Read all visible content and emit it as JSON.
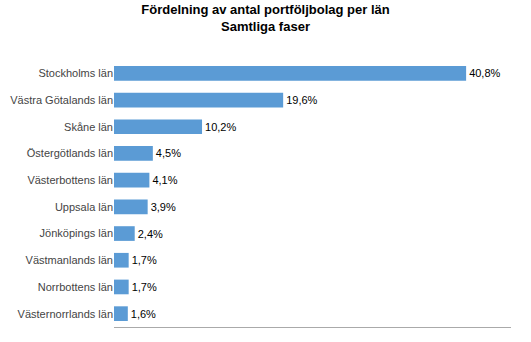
{
  "chart_data": {
    "type": "bar",
    "orientation": "horizontal",
    "title": "Fördelning av antal portföljbolag per län",
    "subtitle": "Samtliga faser",
    "categories": [
      "Västernorrlands län",
      "Norrbottens län",
      "Västmanlands län",
      "Jönköpings län",
      "Uppsala län",
      "Västerbottens län",
      "Östergötlands län",
      "Skåne län",
      "Västra Götalands län",
      "Stockholms län"
    ],
    "values": [
      1.6,
      1.7,
      1.7,
      2.4,
      3.9,
      4.1,
      4.5,
      10.2,
      19.6,
      40.8
    ],
    "value_labels": [
      "1,6%",
      "1,7%",
      "1,7%",
      "2,4%",
      "3,9%",
      "4,1%",
      "4,5%",
      "10,2%",
      "19,6%",
      "40,8%"
    ],
    "data_labels": true,
    "color": "#5B9BD5",
    "xlim": [
      0,
      46
    ],
    "tick_labels": "y",
    "grid": false
  }
}
